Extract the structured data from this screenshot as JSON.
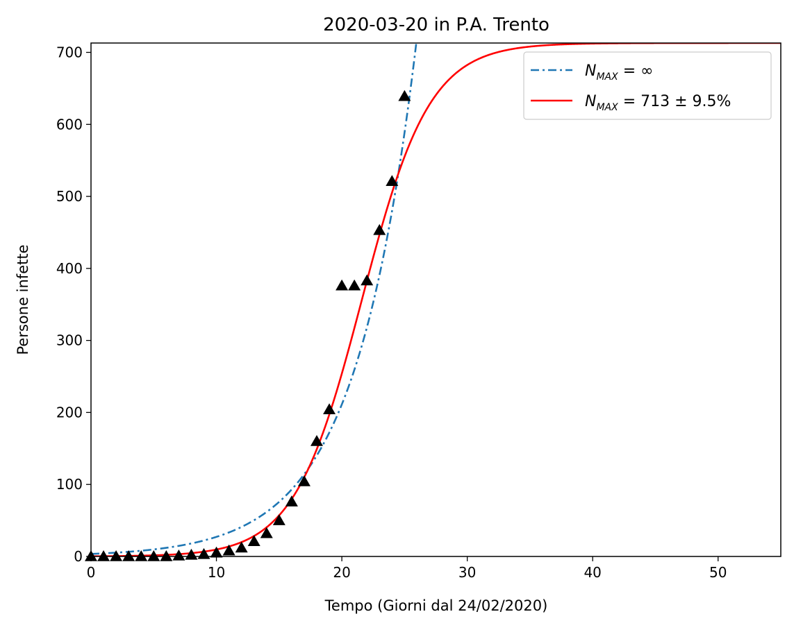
{
  "chart_data": {
    "type": "scatter",
    "title": "2020-03-20 in P.A. Trento",
    "xlabel": "Tempo (Giorni dal 24/02/2020)",
    "ylabel": "Persone infette",
    "xlim": [
      0,
      55
    ],
    "ylim": [
      0,
      713
    ],
    "xticks": [
      0,
      10,
      20,
      30,
      40,
      50
    ],
    "yticks": [
      0,
      100,
      200,
      300,
      400,
      500,
      600,
      700
    ],
    "grid": false,
    "legend_position": "top-right",
    "observed": {
      "marker": "triangle",
      "color": "#000000",
      "x": [
        0,
        1,
        2,
        3,
        4,
        5,
        6,
        7,
        8,
        9,
        10,
        11,
        12,
        13,
        14,
        15,
        16,
        17,
        18,
        19,
        20,
        21,
        22,
        23,
        24,
        25
      ],
      "y": [
        0,
        0,
        0,
        0,
        0,
        0,
        0,
        1,
        2,
        3,
        5,
        8,
        12,
        21,
        32,
        50,
        76,
        104,
        160,
        204,
        376,
        376,
        383,
        453,
        521,
        639
      ]
    },
    "series": [
      {
        "name": "N_MAX = ∞",
        "legend_main": "N",
        "legend_sub": "MAX",
        "legend_rest": " = ∞",
        "model": "exponential",
        "N0": 3.5,
        "rate": 0.205,
        "color": "#1f77b4",
        "style": "dashdot"
      },
      {
        "name": "N_MAX = 713 ± 9.5%",
        "legend_main": "N",
        "legend_sub": "MAX",
        "legend_rest": " = 713 ± 9.5%",
        "model": "logistic",
        "K": 713,
        "t0": 21.6,
        "rate": 0.37,
        "color": "#ff0000",
        "style": "solid"
      }
    ]
  }
}
